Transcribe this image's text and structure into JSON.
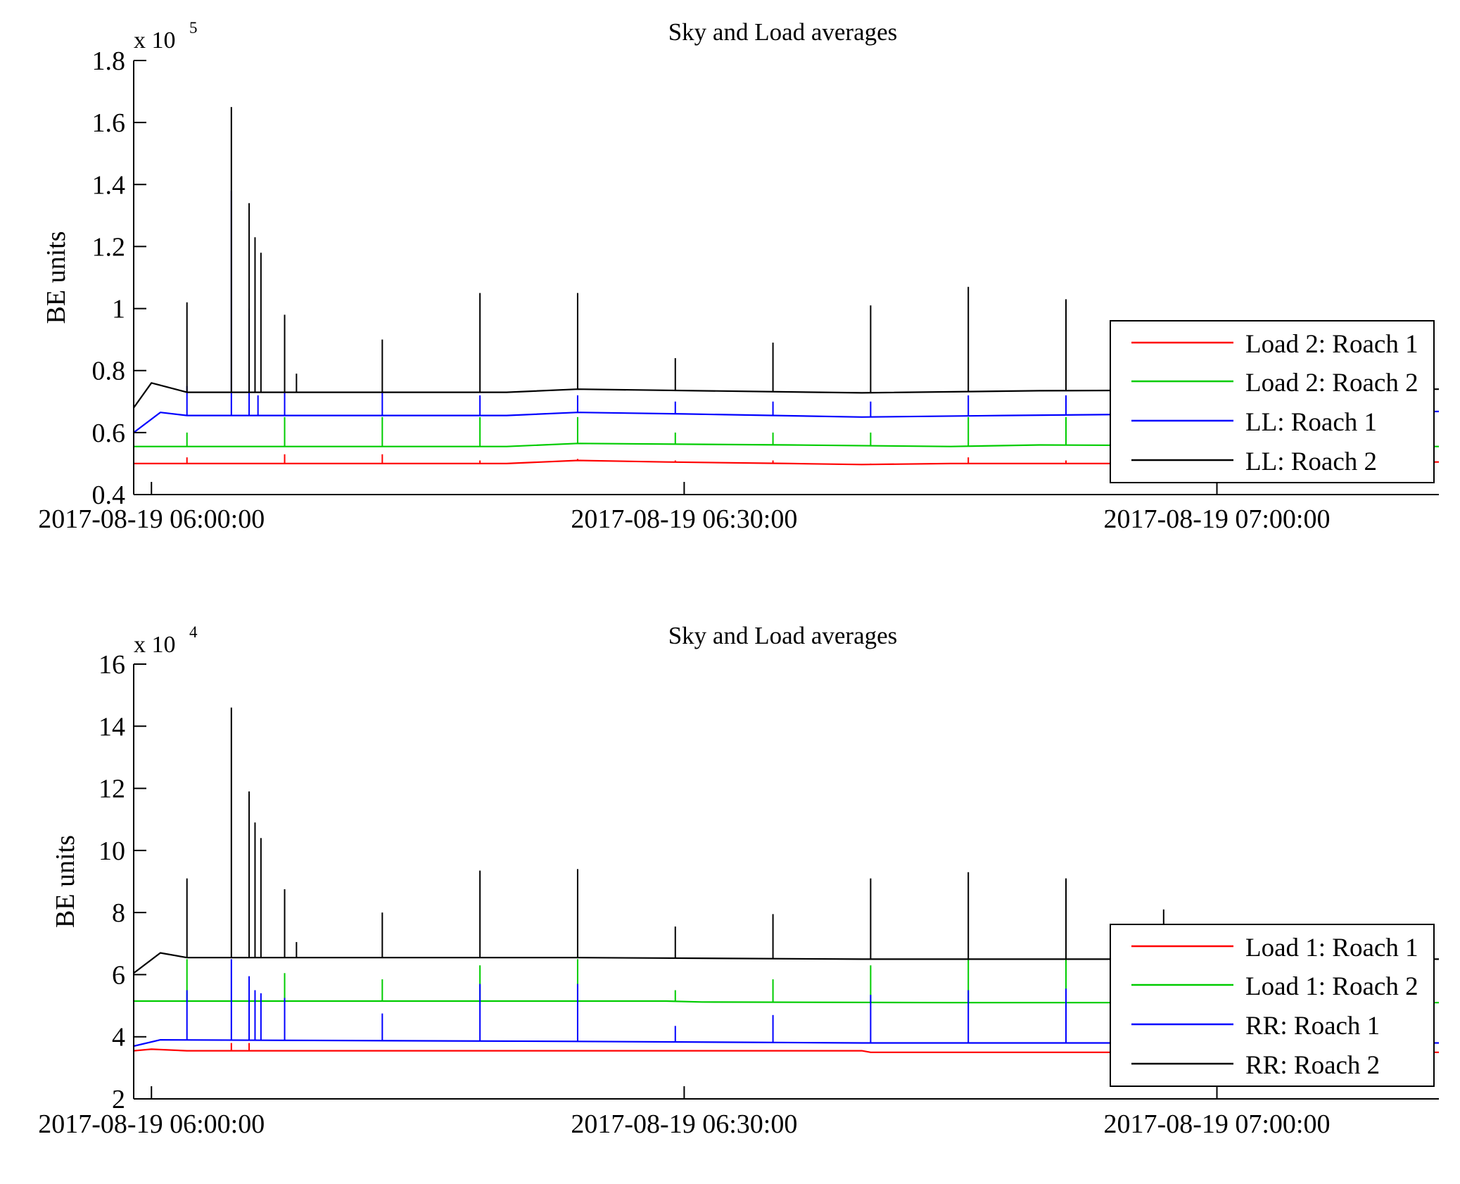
{
  "chart_data": [
    {
      "type": "line",
      "title": "Sky and Load averages",
      "xlabel": "",
      "ylabel": "BE units",
      "y_exponent_label": {
        "prefix": "x 10",
        "power": "5"
      },
      "x_range": [
        "2017-08-19 05:59:00",
        "2017-08-19 07:12:30"
      ],
      "x_ticks": [
        "2017-08-19 06:00:00",
        "2017-08-19 06:30:00",
        "2017-08-19 07:00:00"
      ],
      "ylim": [
        0.4,
        1.8
      ],
      "y_ticks": [
        0.4,
        0.6,
        0.8,
        1,
        1.2,
        1.4,
        1.6,
        1.8
      ],
      "y_tick_labels": [
        "0.4",
        "0.6",
        "0.8",
        "1",
        "1.2",
        "1.4",
        "1.6",
        "1.8"
      ],
      "grid": false,
      "legend_position": "lower-right",
      "series": [
        {
          "name": "Load 2: Roach 1",
          "color": "#ff0000",
          "ramp": {
            "start": "2017-08-19 05:59:00",
            "end": "2017-08-19 06:00:30",
            "from": 0.5,
            "to": 0.5
          },
          "points": [
            [
              "2017-08-19 06:00:30",
              0.5
            ],
            [
              "2017-08-19 06:20:00",
              0.5
            ],
            [
              "2017-08-19 06:24:00",
              0.51
            ],
            [
              "2017-08-19 06:29:00",
              0.505
            ],
            [
              "2017-08-19 06:36:00",
              0.5
            ],
            [
              "2017-08-19 06:40:00",
              0.497
            ],
            [
              "2017-08-19 06:45:00",
              0.5
            ],
            [
              "2017-08-19 06:58:00",
              0.5
            ],
            [
              "2017-08-19 07:12:30",
              0.505
            ]
          ],
          "spikes": [
            [
              "2017-08-19 06:02:00",
              0.52
            ],
            [
              "2017-08-19 06:07:30",
              0.53
            ],
            [
              "2017-08-19 06:13:00",
              0.53
            ],
            [
              "2017-08-19 06:18:30",
              0.51
            ],
            [
              "2017-08-19 06:24:00",
              0.515
            ],
            [
              "2017-08-19 06:29:30",
              0.51
            ],
            [
              "2017-08-19 06:35:00",
              0.51
            ],
            [
              "2017-08-19 06:40:30",
              0.5
            ],
            [
              "2017-08-19 06:46:00",
              0.52
            ],
            [
              "2017-08-19 06:51:30",
              0.51
            ]
          ]
        },
        {
          "name": "Load 2: Roach 2",
          "color": "#00cc00",
          "ramp": {
            "start": "2017-08-19 05:59:00",
            "end": "2017-08-19 06:00:30",
            "from": 0.555,
            "to": 0.555
          },
          "points": [
            [
              "2017-08-19 06:00:30",
              0.555
            ],
            [
              "2017-08-19 06:20:00",
              0.555
            ],
            [
              "2017-08-19 06:24:00",
              0.565
            ],
            [
              "2017-08-19 06:36:00",
              0.56
            ],
            [
              "2017-08-19 06:45:00",
              0.555
            ],
            [
              "2017-08-19 06:50:00",
              0.56
            ],
            [
              "2017-08-19 07:12:30",
              0.555
            ]
          ],
          "spikes": [
            [
              "2017-08-19 06:02:00",
              0.6
            ],
            [
              "2017-08-19 06:07:30",
              0.65
            ],
            [
              "2017-08-19 06:13:00",
              0.65
            ],
            [
              "2017-08-19 06:18:30",
              0.65
            ],
            [
              "2017-08-19 06:24:00",
              0.65
            ],
            [
              "2017-08-19 06:29:30",
              0.6
            ],
            [
              "2017-08-19 06:35:00",
              0.6
            ],
            [
              "2017-08-19 06:40:30",
              0.6
            ],
            [
              "2017-08-19 06:46:00",
              0.65
            ],
            [
              "2017-08-19 06:51:30",
              0.65
            ]
          ]
        },
        {
          "name": "LL: Roach 1",
          "color": "#0000ff",
          "ramp": {
            "start": "2017-08-19 05:59:00",
            "end": "2017-08-19 06:00:30",
            "from": 0.6,
            "to": 0.665
          },
          "points": [
            [
              "2017-08-19 06:00:30",
              0.665
            ],
            [
              "2017-08-19 06:02:00",
              0.655
            ],
            [
              "2017-08-19 06:20:00",
              0.655
            ],
            [
              "2017-08-19 06:24:00",
              0.665
            ],
            [
              "2017-08-19 06:30:00",
              0.66
            ],
            [
              "2017-08-19 06:40:00",
              0.65
            ],
            [
              "2017-08-19 06:48:00",
              0.655
            ],
            [
              "2017-08-19 06:58:00",
              0.66
            ],
            [
              "2017-08-19 07:12:30",
              0.668
            ]
          ],
          "spikes": [
            [
              "2017-08-19 06:02:00",
              0.75
            ],
            [
              "2017-08-19 06:04:30",
              1.38
            ],
            [
              "2017-08-19 06:05:30",
              1.0
            ],
            [
              "2017-08-19 06:06:00",
              0.72
            ],
            [
              "2017-08-19 06:07:30",
              0.73
            ],
            [
              "2017-08-19 06:13:00",
              0.73
            ],
            [
              "2017-08-19 06:18:30",
              0.72
            ],
            [
              "2017-08-19 06:24:00",
              0.72
            ],
            [
              "2017-08-19 06:29:30",
              0.7
            ],
            [
              "2017-08-19 06:35:00",
              0.7
            ],
            [
              "2017-08-19 06:40:30",
              0.7
            ],
            [
              "2017-08-19 06:46:00",
              0.72
            ],
            [
              "2017-08-19 06:51:30",
              0.72
            ]
          ]
        },
        {
          "name": "LL: Roach 2",
          "color": "#000000",
          "ramp": {
            "start": "2017-08-19 05:59:00",
            "end": "2017-08-19 06:00:00",
            "from": 0.68,
            "to": 0.76
          },
          "points": [
            [
              "2017-08-19 06:00:00",
              0.76
            ],
            [
              "2017-08-19 06:02:00",
              0.73
            ],
            [
              "2017-08-19 06:20:00",
              0.73
            ],
            [
              "2017-08-19 06:24:00",
              0.74
            ],
            [
              "2017-08-19 06:40:00",
              0.728
            ],
            [
              "2017-08-19 06:50:00",
              0.735
            ],
            [
              "2017-08-19 07:12:30",
              0.74
            ]
          ],
          "spikes": [
            [
              "2017-08-19 06:02:00",
              1.02
            ],
            [
              "2017-08-19 06:04:30",
              1.65
            ],
            [
              "2017-08-19 06:05:30",
              1.34
            ],
            [
              "2017-08-19 06:05:50",
              1.23
            ],
            [
              "2017-08-19 06:06:10",
              1.18
            ],
            [
              "2017-08-19 06:07:30",
              0.98
            ],
            [
              "2017-08-19 06:08:10",
              0.79
            ],
            [
              "2017-08-19 06:13:00",
              0.9
            ],
            [
              "2017-08-19 06:18:30",
              1.05
            ],
            [
              "2017-08-19 06:24:00",
              1.05
            ],
            [
              "2017-08-19 06:29:30",
              0.84
            ],
            [
              "2017-08-19 06:35:00",
              0.89
            ],
            [
              "2017-08-19 06:40:30",
              1.01
            ],
            [
              "2017-08-19 06:46:00",
              1.07
            ],
            [
              "2017-08-19 06:51:30",
              1.03
            ]
          ]
        }
      ]
    },
    {
      "type": "line",
      "title": "Sky and Load averages",
      "xlabel": "",
      "ylabel": "BE units",
      "y_exponent_label": {
        "prefix": "x 10",
        "power": "4"
      },
      "x_range": [
        "2017-08-19 05:59:00",
        "2017-08-19 07:12:30"
      ],
      "x_ticks": [
        "2017-08-19 06:00:00",
        "2017-08-19 06:30:00",
        "2017-08-19 07:00:00"
      ],
      "ylim": [
        2,
        16
      ],
      "y_ticks": [
        2,
        4,
        6,
        8,
        10,
        12,
        14,
        16
      ],
      "y_tick_labels": [
        "2",
        "4",
        "6",
        "8",
        "10",
        "12",
        "14",
        "16"
      ],
      "grid": false,
      "legend_position": "lower-right",
      "series": [
        {
          "name": "Load 1: Roach 1",
          "color": "#ff0000",
          "ramp": {
            "start": "2017-08-19 05:59:00",
            "end": "2017-08-19 06:00:00",
            "from": 3.55,
            "to": 3.6
          },
          "points": [
            [
              "2017-08-19 06:00:00",
              3.6
            ],
            [
              "2017-08-19 06:02:00",
              3.55
            ],
            [
              "2017-08-19 06:40:00",
              3.55
            ],
            [
              "2017-08-19 06:40:30",
              3.5
            ],
            [
              "2017-08-19 07:12:30",
              3.5
            ]
          ],
          "spikes": [
            [
              "2017-08-19 06:04:30",
              3.8
            ],
            [
              "2017-08-19 06:05:30",
              3.8
            ]
          ]
        },
        {
          "name": "Load 1: Roach 2",
          "color": "#00cc00",
          "ramp": {
            "start": "2017-08-19 05:59:00",
            "end": "2017-08-19 06:00:30",
            "from": 5.15,
            "to": 5.15
          },
          "points": [
            [
              "2017-08-19 06:00:30",
              5.15
            ],
            [
              "2017-08-19 06:29:00",
              5.15
            ],
            [
              "2017-08-19 06:31:00",
              5.12
            ],
            [
              "2017-08-19 06:45:00",
              5.1
            ],
            [
              "2017-08-19 07:12:30",
              5.1
            ]
          ],
          "spikes": [
            [
              "2017-08-19 06:02:00",
              6.5
            ],
            [
              "2017-08-19 06:07:30",
              6.05
            ],
            [
              "2017-08-19 06:13:00",
              5.85
            ],
            [
              "2017-08-19 06:18:30",
              6.3
            ],
            [
              "2017-08-19 06:24:00",
              6.5
            ],
            [
              "2017-08-19 06:29:30",
              5.5
            ],
            [
              "2017-08-19 06:35:00",
              5.85
            ],
            [
              "2017-08-19 06:40:30",
              6.3
            ],
            [
              "2017-08-19 06:46:00",
              6.5
            ],
            [
              "2017-08-19 06:51:30",
              6.5
            ]
          ]
        },
        {
          "name": "RR: Roach 1",
          "color": "#0000ff",
          "ramp": {
            "start": "2017-08-19 05:59:00",
            "end": "2017-08-19 06:00:30",
            "from": 3.7,
            "to": 3.9
          },
          "points": [
            [
              "2017-08-19 06:00:30",
              3.9
            ],
            [
              "2017-08-19 06:24:00",
              3.85
            ],
            [
              "2017-08-19 06:40:00",
              3.8
            ],
            [
              "2017-08-19 07:12:30",
              3.8
            ]
          ],
          "spikes": [
            [
              "2017-08-19 06:02:00",
              5.5
            ],
            [
              "2017-08-19 06:04:30",
              6.5
            ],
            [
              "2017-08-19 06:05:30",
              5.95
            ],
            [
              "2017-08-19 06:05:50",
              5.5
            ],
            [
              "2017-08-19 06:06:10",
              5.4
            ],
            [
              "2017-08-19 06:07:30",
              5.25
            ],
            [
              "2017-08-19 06:13:00",
              4.75
            ],
            [
              "2017-08-19 06:18:30",
              5.7
            ],
            [
              "2017-08-19 06:24:00",
              5.7
            ],
            [
              "2017-08-19 06:29:30",
              4.35
            ],
            [
              "2017-08-19 06:35:00",
              4.7
            ],
            [
              "2017-08-19 06:40:30",
              5.35
            ],
            [
              "2017-08-19 06:46:00",
              5.5
            ],
            [
              "2017-08-19 06:51:30",
              5.55
            ]
          ]
        },
        {
          "name": "RR: Roach 2",
          "color": "#000000",
          "ramp": {
            "start": "2017-08-19 05:59:00",
            "end": "2017-08-19 06:00:30",
            "from": 6.05,
            "to": 6.7
          },
          "points": [
            [
              "2017-08-19 06:00:30",
              6.7
            ],
            [
              "2017-08-19 06:02:00",
              6.55
            ],
            [
              "2017-08-19 06:24:00",
              6.55
            ],
            [
              "2017-08-19 06:40:00",
              6.5
            ],
            [
              "2017-08-19 07:12:30",
              6.5
            ]
          ],
          "spikes": [
            [
              "2017-08-19 06:02:00",
              9.1
            ],
            [
              "2017-08-19 06:04:30",
              14.6
            ],
            [
              "2017-08-19 06:05:30",
              11.9
            ],
            [
              "2017-08-19 06:05:50",
              10.9
            ],
            [
              "2017-08-19 06:06:10",
              10.4
            ],
            [
              "2017-08-19 06:07:30",
              8.75
            ],
            [
              "2017-08-19 06:08:10",
              7.05
            ],
            [
              "2017-08-19 06:13:00",
              8.0
            ],
            [
              "2017-08-19 06:18:30",
              9.35
            ],
            [
              "2017-08-19 06:24:00",
              9.4
            ],
            [
              "2017-08-19 06:29:30",
              7.55
            ],
            [
              "2017-08-19 06:35:00",
              7.95
            ],
            [
              "2017-08-19 06:40:30",
              9.1
            ],
            [
              "2017-08-19 06:46:00",
              9.3
            ],
            [
              "2017-08-19 06:51:30",
              9.1
            ],
            [
              "2017-08-19 06:57:00",
              8.1
            ]
          ]
        }
      ]
    }
  ]
}
